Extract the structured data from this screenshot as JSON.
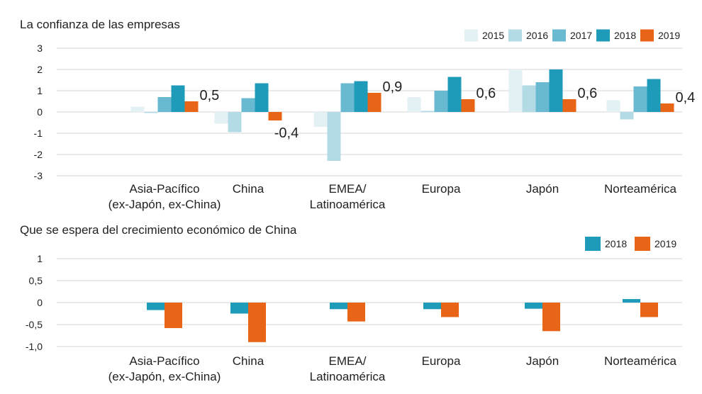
{
  "chart_data": [
    {
      "type": "bar",
      "title": "La confianza de las empresas",
      "xlabel": "",
      "ylabel": "",
      "ylim": [
        -3,
        3
      ],
      "yticks": [
        "3",
        "2",
        "1",
        "0",
        "-1",
        "-2",
        "-3"
      ],
      "ytick_values": [
        3,
        2,
        1,
        0,
        -1,
        -2,
        -3
      ],
      "grid": true,
      "legend_position": "top-right",
      "categories": [
        [
          "Asia-Pacífico",
          "(ex-Japón, ex-China)"
        ],
        [
          "China"
        ],
        [
          "EMEA/",
          "Latinoamérica"
        ],
        [
          "Europa"
        ],
        [
          "Japón"
        ],
        [
          "Norteamérica"
        ]
      ],
      "series": [
        {
          "name": "2015",
          "color": "#e4f1f4",
          "values": [
            0.25,
            -0.55,
            -0.7,
            0.7,
            2.0,
            0.55
          ]
        },
        {
          "name": "2016",
          "color": "#b3dbe6",
          "values": [
            -0.05,
            -0.95,
            -2.3,
            0.05,
            1.25,
            -0.35
          ]
        },
        {
          "name": "2017",
          "color": "#69b9d0",
          "values": [
            0.7,
            0.65,
            1.35,
            1.0,
            1.4,
            1.2
          ]
        },
        {
          "name": "2018",
          "color": "#1f9bba",
          "values": [
            1.25,
            1.35,
            1.45,
            1.65,
            2.0,
            1.55
          ]
        },
        {
          "name": "2019",
          "color": "#e86517",
          "values": [
            0.5,
            -0.4,
            0.9,
            0.6,
            0.6,
            0.4
          ]
        }
      ],
      "data_labels": [
        "0,5",
        "-0,4",
        "0,9",
        "0,6",
        "0,6",
        "0,4"
      ]
    },
    {
      "type": "bar",
      "title": "Que se espera del crecimiento económico de China",
      "xlabel": "",
      "ylabel": "",
      "ylim": [
        -1,
        1
      ],
      "yticks": [
        "1",
        "0,5",
        "0",
        "-0,5",
        "-1,0"
      ],
      "ytick_values": [
        1,
        0.5,
        0,
        -0.5,
        -1
      ],
      "grid": true,
      "legend_position": "top-right",
      "categories": [
        [
          "Asia-Pacífico",
          "(ex-Japón, ex-China)"
        ],
        [
          "China"
        ],
        [
          "EMEA/",
          "Latinoamérica"
        ],
        [
          "Europa"
        ],
        [
          "Japón"
        ],
        [
          "Norteamérica"
        ]
      ],
      "series": [
        {
          "name": "2018",
          "color": "#1f9bba",
          "values": [
            -0.17,
            -0.25,
            -0.15,
            -0.15,
            -0.14,
            0.08
          ]
        },
        {
          "name": "2019",
          "color": "#e86517",
          "values": [
            -0.58,
            -0.9,
            -0.43,
            -0.33,
            -0.65,
            -0.33
          ]
        }
      ]
    }
  ]
}
